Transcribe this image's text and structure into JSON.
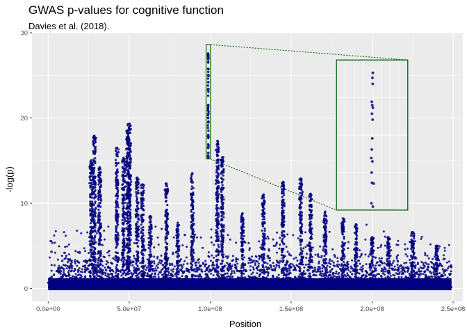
{
  "chart_data": {
    "type": "scatter",
    "title": "GWAS p-values for cognitive function",
    "subtitle": "Davies et al. (2018).",
    "xlabel": "Position",
    "ylabel": "-log(p)",
    "xlim": [
      -10000000.0,
      256000000.0
    ],
    "ylim": [
      -1.5,
      30
    ],
    "x_ticks": [
      0,
      50000000,
      100000000,
      150000000,
      200000000,
      250000000
    ],
    "x_tick_labels": [
      "0.0e+00",
      "5.0e+07",
      "1.0e+08",
      "1.5e+08",
      "2.0e+08",
      "2.5e+08"
    ],
    "y_ticks": [
      0,
      10,
      20,
      30
    ],
    "y_tick_labels": [
      "0",
      "10",
      "20",
      "30"
    ],
    "grid": true,
    "point_color": "#000080",
    "panel_background": "#ebebeb",
    "highlight_color": "#006400",
    "highlight_region": {
      "x": [
        97500000,
        100200000
      ],
      "y": [
        15.2,
        28.6
      ]
    },
    "zoom_inset": {
      "x": [
        178000000,
        222000000
      ],
      "y": [
        9.2,
        26.8
      ]
    },
    "peaks": [
      {
        "x": 28500000,
        "y": 17.9
      },
      {
        "x": 26500000,
        "y": 15.0
      },
      {
        "x": 31800000,
        "y": 14.2
      },
      {
        "x": 42500000,
        "y": 16.5
      },
      {
        "x": 46500000,
        "y": 15.3
      },
      {
        "x": 50200000,
        "y": 19.3
      },
      {
        "x": 49000000,
        "y": 18.5
      },
      {
        "x": 55000000,
        "y": 13.0
      },
      {
        "x": 58200000,
        "y": 12.2
      },
      {
        "x": 63000000,
        "y": 8.5
      },
      {
        "x": 73000000,
        "y": 12.3
      },
      {
        "x": 80000000,
        "y": 7.7
      },
      {
        "x": 89000000,
        "y": 13.5
      },
      {
        "x": 104500000,
        "y": 17.3
      },
      {
        "x": 107500000,
        "y": 15.4
      },
      {
        "x": 120000000,
        "y": 8.8
      },
      {
        "x": 133000000,
        "y": 11.0
      },
      {
        "x": 145000000,
        "y": 12.5
      },
      {
        "x": 156000000,
        "y": 12.9
      },
      {
        "x": 162000000,
        "y": 11.1
      },
      {
        "x": 171000000,
        "y": 9.0
      },
      {
        "x": 182000000,
        "y": 8.2
      },
      {
        "x": 190000000,
        "y": 7.5
      },
      {
        "x": 200000000,
        "y": 6.0
      },
      {
        "x": 210000000,
        "y": 6.0
      },
      {
        "x": 225000000,
        "y": 6.6
      },
      {
        "x": 240000000,
        "y": 5.0
      }
    ],
    "highlight_points": [
      {
        "x": 98700000,
        "y": 27.4
      },
      {
        "x": 98800000,
        "y": 26.9
      },
      {
        "x": 98900000,
        "y": 25.0
      },
      {
        "x": 98850000,
        "y": 24.2
      },
      {
        "x": 98900000,
        "y": 23.4
      },
      {
        "x": 98800000,
        "y": 21.5
      },
      {
        "x": 98900000,
        "y": 20.5
      },
      {
        "x": 98750000,
        "y": 20.0
      },
      {
        "x": 98900000,
        "y": 19.5
      },
      {
        "x": 98850000,
        "y": 18.0
      },
      {
        "x": 98800000,
        "y": 16.5
      },
      {
        "x": 98900000,
        "y": 15.9
      },
      {
        "x": 98850000,
        "y": 15.5
      }
    ],
    "inset_points": [
      {
        "x": 200450000,
        "y": 25.3
      },
      {
        "x": 200200000,
        "y": 24.7
      },
      {
        "x": 200350000,
        "y": 24.0
      },
      {
        "x": 199800000,
        "y": 21.9
      },
      {
        "x": 200100000,
        "y": 21.5
      },
      {
        "x": 200500000,
        "y": 21.2
      },
      {
        "x": 199900000,
        "y": 20.5
      },
      {
        "x": 200300000,
        "y": 19.8
      },
      {
        "x": 200100000,
        "y": 17.6
      },
      {
        "x": 199800000,
        "y": 16.3
      },
      {
        "x": 199500000,
        "y": 15.3
      },
      {
        "x": 200200000,
        "y": 14.9
      },
      {
        "x": 199700000,
        "y": 13.6
      },
      {
        "x": 199900000,
        "y": 12.4
      },
      {
        "x": 201000000,
        "y": 12.3
      },
      {
        "x": 199600000,
        "y": 10.0
      },
      {
        "x": 200500000,
        "y": 9.6
      }
    ]
  }
}
